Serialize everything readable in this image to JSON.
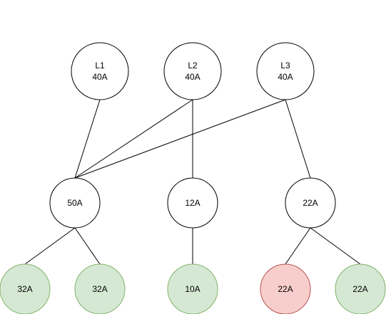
{
  "diagram": {
    "sources": [
      {
        "id": "L1",
        "line": "L1",
        "rating": "40A"
      },
      {
        "id": "L2",
        "line": "L2",
        "rating": "40A"
      },
      {
        "id": "L3",
        "line": "L3",
        "rating": "40A"
      }
    ],
    "branches": [
      {
        "id": "b1",
        "rating": "50A",
        "inputs": [
          "L1",
          "L2",
          "L3"
        ]
      },
      {
        "id": "b2",
        "rating": "12A",
        "inputs": [
          "L2"
        ]
      },
      {
        "id": "b3",
        "rating": "22A",
        "inputs": [
          "L3"
        ]
      }
    ],
    "loads": [
      {
        "id": "c1",
        "rating": "32A",
        "parent": "b1",
        "status": "ok"
      },
      {
        "id": "c2",
        "rating": "32A",
        "parent": "b1",
        "status": "ok"
      },
      {
        "id": "c3",
        "rating": "10A",
        "parent": "b2",
        "status": "ok"
      },
      {
        "id": "c4",
        "rating": "22A",
        "parent": "b3",
        "status": "overload"
      },
      {
        "id": "c5",
        "rating": "22A",
        "parent": "b3",
        "status": "ok"
      }
    ],
    "colors": {
      "neutral_fill": "#ffffff",
      "neutral_stroke": "#000000",
      "ok_fill": "#d5e8d4",
      "ok_stroke": "#82b366",
      "overload_fill": "#f8cecc",
      "overload_stroke": "#b85450"
    }
  }
}
